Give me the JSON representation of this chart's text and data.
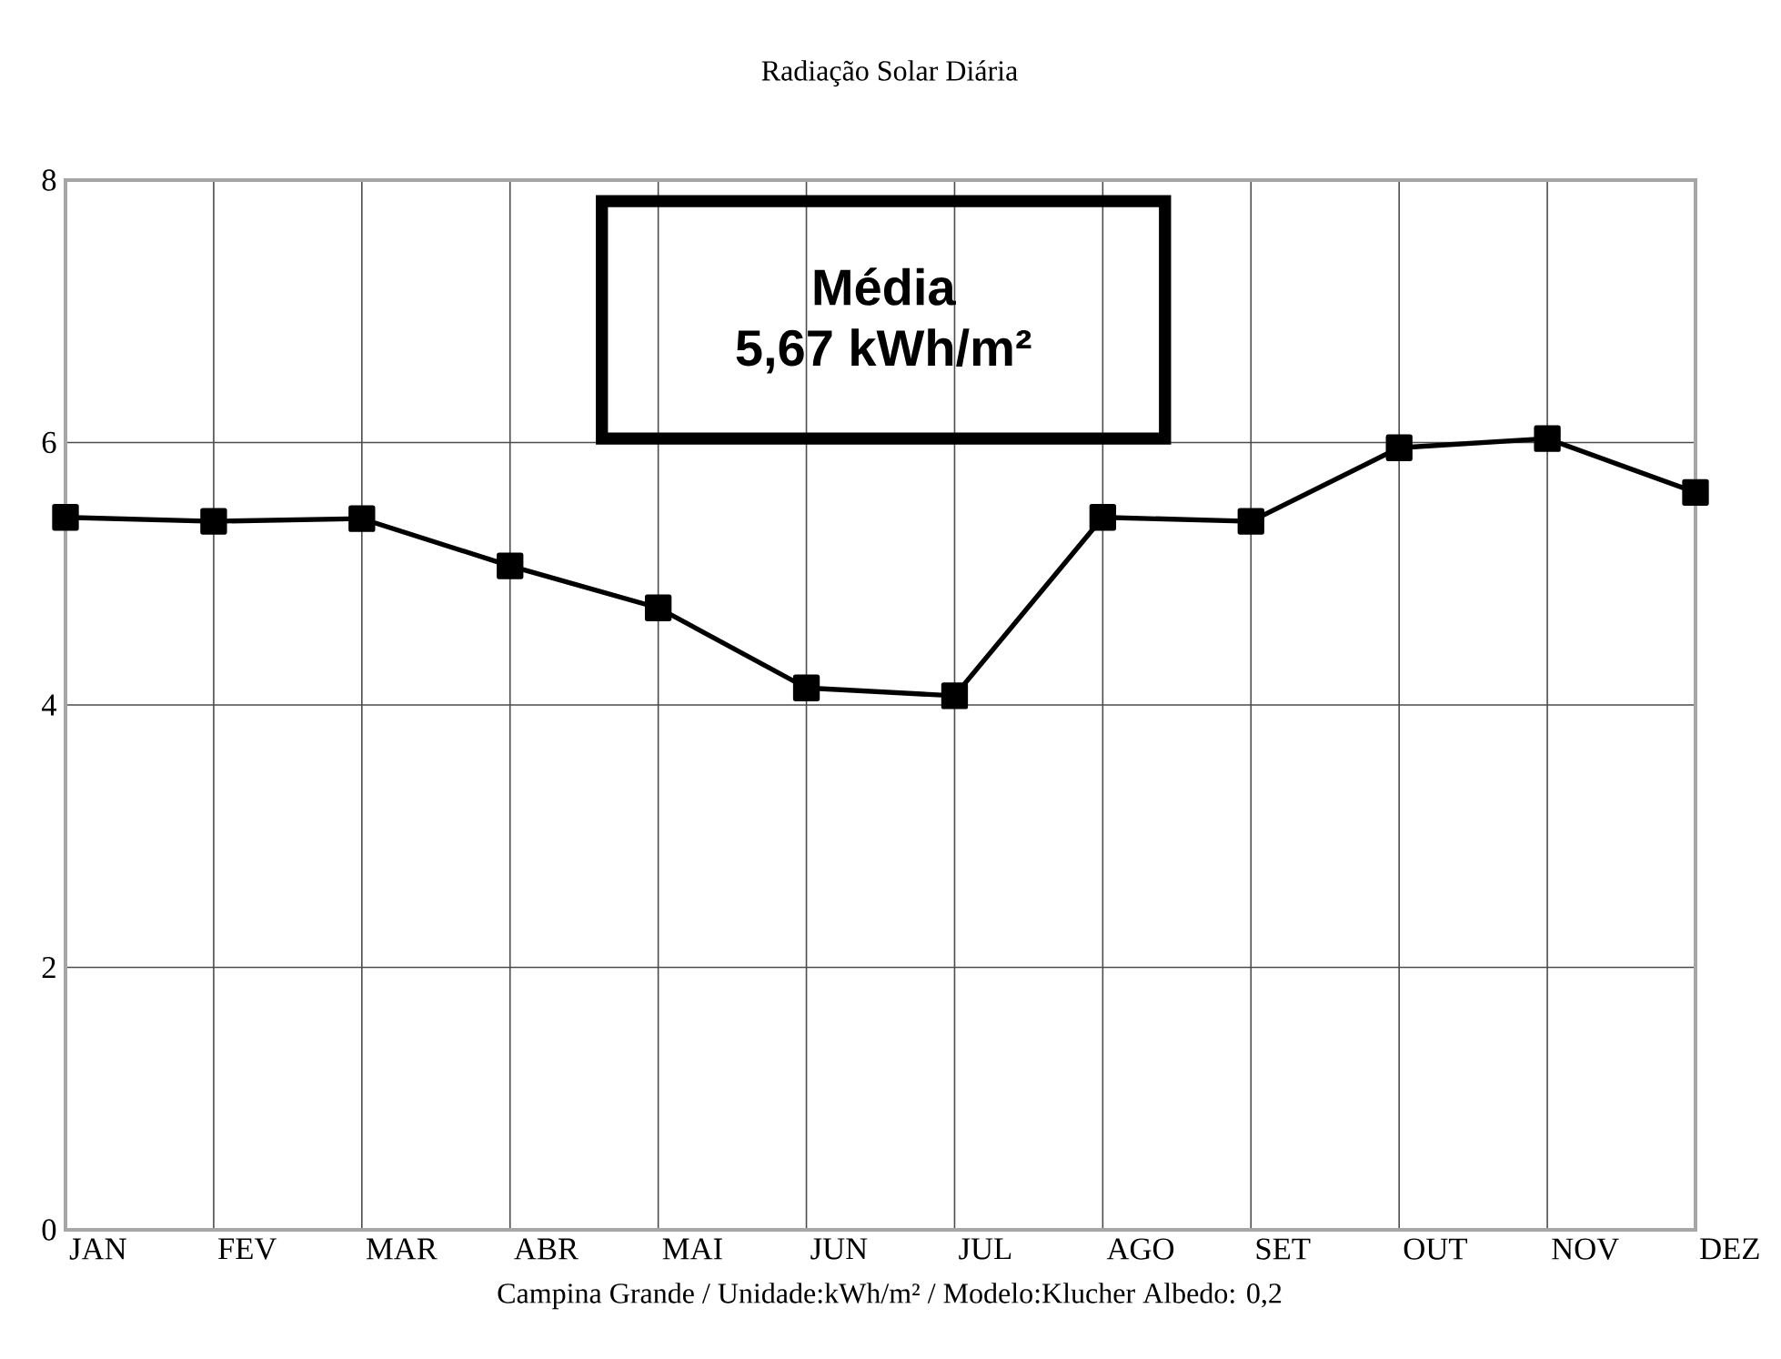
{
  "chart_data": {
    "type": "line",
    "title": "Radiação Solar Diária",
    "categories": [
      "JAN",
      "FEV",
      "MAR",
      "ABR",
      "MAI",
      "JUN",
      "JUL",
      "AGO",
      "SET",
      "OUT",
      "NOV",
      "DEZ"
    ],
    "series": [
      {
        "color": "#000000",
        "values": [
          5.43,
          5.4,
          5.42,
          5.06,
          4.74,
          4.13,
          4.07,
          5.43,
          5.4,
          5.96,
          6.03,
          5.62
        ]
      }
    ],
    "ylim": [
      0,
      8
    ],
    "yticks": [
      0,
      2,
      4,
      6,
      8
    ],
    "grid": true,
    "marker": "square",
    "line_style": "solid",
    "annotations": [
      "Média",
      "5,67 kWh/m²",
      "Campina Grande / Unidade:kWh/m² / Modelo:Klucher Albedo: 0,2"
    ]
  }
}
